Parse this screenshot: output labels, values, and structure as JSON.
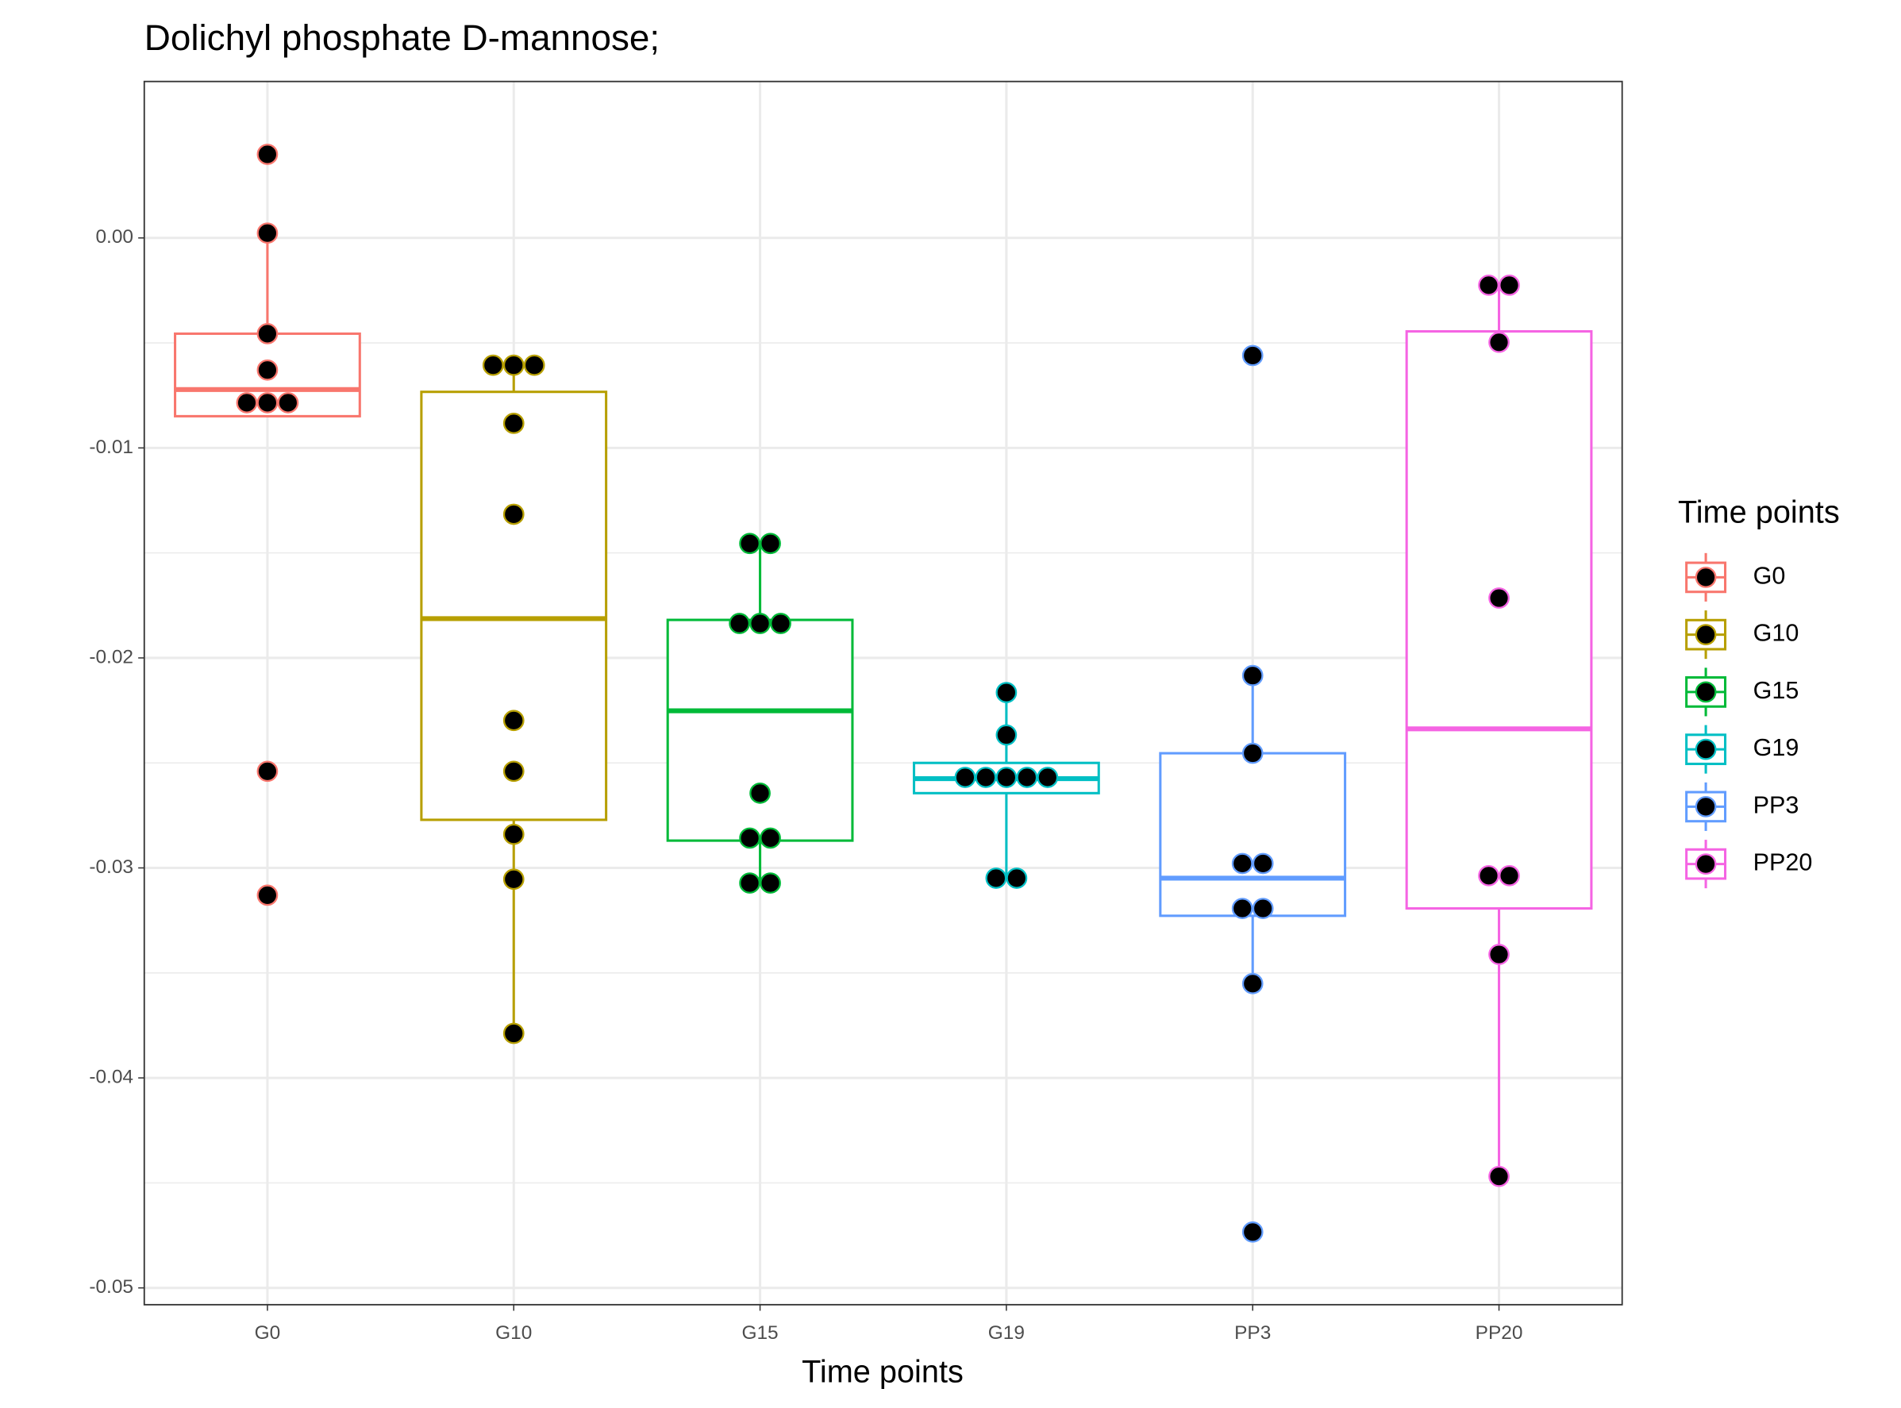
{
  "chart_data": {
    "type": "box",
    "title": "Dolichyl phosphate D-mannose;",
    "x_label": "Time points",
    "legend_title": "Time points",
    "categories": [
      "G0",
      "G10",
      "G15",
      "G19",
      "PP3",
      "PP20"
    ],
    "ylim": [
      -0.0508,
      0.00745
    ],
    "yticks": [
      {
        "value": 0,
        "label": "0.00"
      },
      {
        "value": -0.01,
        "label": "-0.01"
      },
      {
        "value": -0.02,
        "label": "-0.02"
      },
      {
        "value": -0.03,
        "label": "-0.03"
      },
      {
        "value": -0.04,
        "label": "-0.04"
      },
      {
        "value": -0.05,
        "label": "-0.05"
      }
    ],
    "grid": true,
    "legend_position": "right",
    "series": [
      {
        "name": "G0",
        "color": "#F8766D",
        "box": [
          -0.00849,
          -0.00849,
          -0.00722,
          -0.00456,
          0.00023
        ],
        "values": [
          0.00398,
          0.00023,
          -0.00456,
          -0.00629,
          -0.00785,
          -0.00785,
          -0.00785,
          -0.0254,
          -0.0313
        ]
      },
      {
        "name": "G10",
        "color": "#B79F00",
        "box": [
          -0.03788,
          -0.02771,
          -0.01813,
          -0.00733,
          -0.00606
        ],
        "values": [
          -0.00606,
          -0.00606,
          -0.00606,
          -0.00883,
          -0.01316,
          -0.02298,
          -0.0254,
          -0.0284,
          -0.03054,
          -0.03788
        ]
      },
      {
        "name": "G15",
        "color": "#00BA38",
        "box": [
          -0.03072,
          -0.0287,
          -0.02252,
          -0.01819,
          -0.01455
        ],
        "values": [
          -0.01455,
          -0.01455,
          -0.01836,
          -0.01836,
          -0.01836,
          -0.02644,
          -0.02858,
          -0.02858,
          -0.03072,
          -0.03072
        ]
      },
      {
        "name": "G19",
        "color": "#00BFC4",
        "box": [
          -0.03054,
          -0.02644,
          -0.02575,
          -0.025,
          -0.02165
        ],
        "values": [
          -0.02165,
          -0.02367,
          -0.02569,
          -0.02569,
          -0.02569,
          -0.02569,
          -0.02569,
          -0.03049,
          -0.03049
        ]
      },
      {
        "name": "PP3",
        "color": "#619CFF",
        "box": [
          -0.03551,
          -0.03228,
          -0.03049,
          -0.02454,
          -0.02084
        ],
        "values": [
          -0.0056,
          -0.02084,
          -0.02454,
          -0.02979,
          -0.02979,
          -0.03193,
          -0.03193,
          -0.03551,
          -0.04734
        ]
      },
      {
        "name": "PP20",
        "color": "#F564E3",
        "box": [
          -0.04469,
          -0.03193,
          -0.02338,
          -0.00445,
          -0.00225
        ],
        "values": [
          -0.00225,
          -0.00225,
          -0.00497,
          -0.01715,
          -0.03037,
          -0.03037,
          -0.03412,
          -0.04469
        ]
      }
    ]
  }
}
